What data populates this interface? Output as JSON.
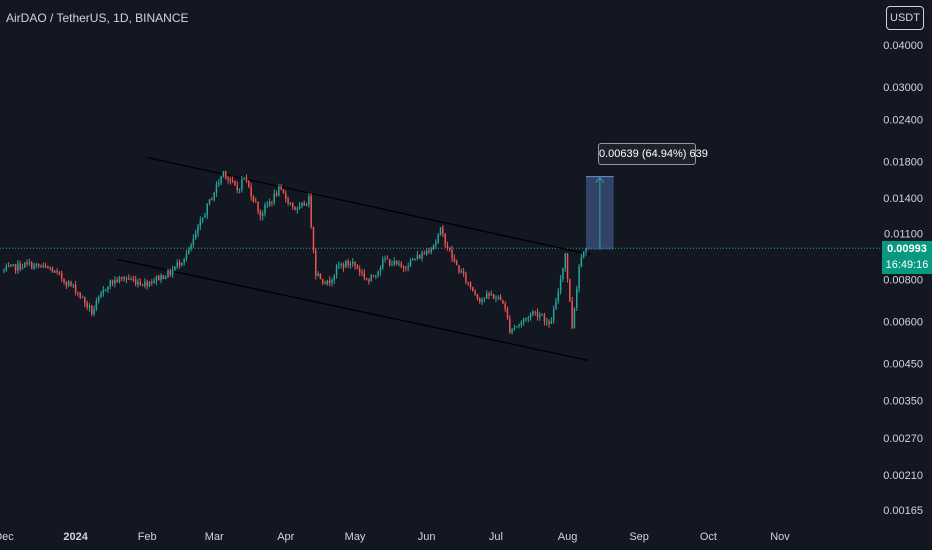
{
  "header": {
    "symbol_title": "AirDAO / TetherUS, 1D, BINANCE",
    "currency_button": "USDT"
  },
  "colors": {
    "background": "#131722",
    "up": "#26a69a",
    "down": "#ef5350",
    "price_line": "#26a69a",
    "price_tag": "#089981",
    "trendline": "#2a2e39",
    "measure_fill": "#5b7bbd",
    "text": "#d1d4dc"
  },
  "price_tag": {
    "price": "0.00993",
    "countdown": "16:49:16"
  },
  "measure": {
    "label": "0.00639 (64.94%) 639"
  },
  "chart_data": {
    "type": "candlestick",
    "title": "AirDAO / TetherUS, 1D, BINANCE",
    "y_scale": "log",
    "ylim": [
      0.00155,
      0.046
    ],
    "y_ticks": [
      "0.04000",
      "0.03000",
      "0.02400",
      "0.01800",
      "0.01400",
      "0.01100",
      "0.00800",
      "0.00600",
      "0.00450",
      "0.00350",
      "0.00270",
      "0.00210",
      "0.00165"
    ],
    "x_labels": [
      "Dec",
      "2024",
      "Feb",
      "Mar",
      "Apr",
      "May",
      "Jun",
      "Jul",
      "Aug",
      "Sep",
      "Oct",
      "Nov"
    ],
    "x_range": [
      "2023-12-01",
      "2024-11-30"
    ],
    "last_price": 0.00993,
    "path_anchors": [
      [
        "2023-12-01",
        0.0085
      ],
      [
        "2023-12-12",
        0.0089
      ],
      [
        "2023-12-22",
        0.0086
      ],
      [
        "2024-01-02",
        0.0075
      ],
      [
        "2024-01-09",
        0.0064
      ],
      [
        "2024-01-16",
        0.0078
      ],
      [
        "2024-01-23",
        0.0081
      ],
      [
        "2024-02-01",
        0.0078
      ],
      [
        "2024-02-12",
        0.0084
      ],
      [
        "2024-02-20",
        0.0097
      ],
      [
        "2024-02-28",
        0.0132
      ],
      [
        "2024-03-06",
        0.0168
      ],
      [
        "2024-03-12",
        0.0148
      ],
      [
        "2024-03-15",
        0.0162
      ],
      [
        "2024-03-22",
        0.0125
      ],
      [
        "2024-03-30",
        0.0148
      ],
      [
        "2024-04-07",
        0.0128
      ],
      [
        "2024-04-12",
        0.0139
      ],
      [
        "2024-04-15",
        0.0084
      ],
      [
        "2024-04-20",
        0.0078
      ],
      [
        "2024-04-25",
        0.0088
      ],
      [
        "2024-05-01",
        0.009
      ],
      [
        "2024-05-08",
        0.0079
      ],
      [
        "2024-05-15",
        0.0092
      ],
      [
        "2024-05-22",
        0.0087
      ],
      [
        "2024-06-01",
        0.0096
      ],
      [
        "2024-06-06",
        0.0104
      ],
      [
        "2024-06-08",
        0.0112
      ],
      [
        "2024-06-14",
        0.009
      ],
      [
        "2024-06-20",
        0.0078
      ],
      [
        "2024-06-25",
        0.007
      ],
      [
        "2024-06-30",
        0.0072
      ],
      [
        "2024-07-05",
        0.0069
      ],
      [
        "2024-07-08",
        0.0057
      ],
      [
        "2024-07-12",
        0.0059
      ],
      [
        "2024-07-18",
        0.0064
      ],
      [
        "2024-07-22",
        0.0063
      ],
      [
        "2024-07-25",
        0.0058
      ],
      [
        "2024-07-28",
        0.0068
      ],
      [
        "2024-08-01",
        0.0096
      ],
      [
        "2024-08-04",
        0.0058
      ],
      [
        "2024-08-07",
        0.0088
      ],
      [
        "2024-08-09",
        0.00993
      ]
    ],
    "trendlines": [
      {
        "from": [
          "2024-02-01",
          0.0185
        ],
        "to": [
          "2024-08-11",
          0.0095
        ]
      },
      {
        "from": [
          "2024-01-19",
          0.0092
        ],
        "to": [
          "2024-08-10",
          0.0046
        ]
      }
    ],
    "measure": {
      "x_from": "2024-08-09",
      "x_to": "2024-08-21",
      "y_from": 0.00984,
      "y_to": 0.01623,
      "change": 0.00639,
      "percent": 64.94,
      "bars": 639
    }
  }
}
